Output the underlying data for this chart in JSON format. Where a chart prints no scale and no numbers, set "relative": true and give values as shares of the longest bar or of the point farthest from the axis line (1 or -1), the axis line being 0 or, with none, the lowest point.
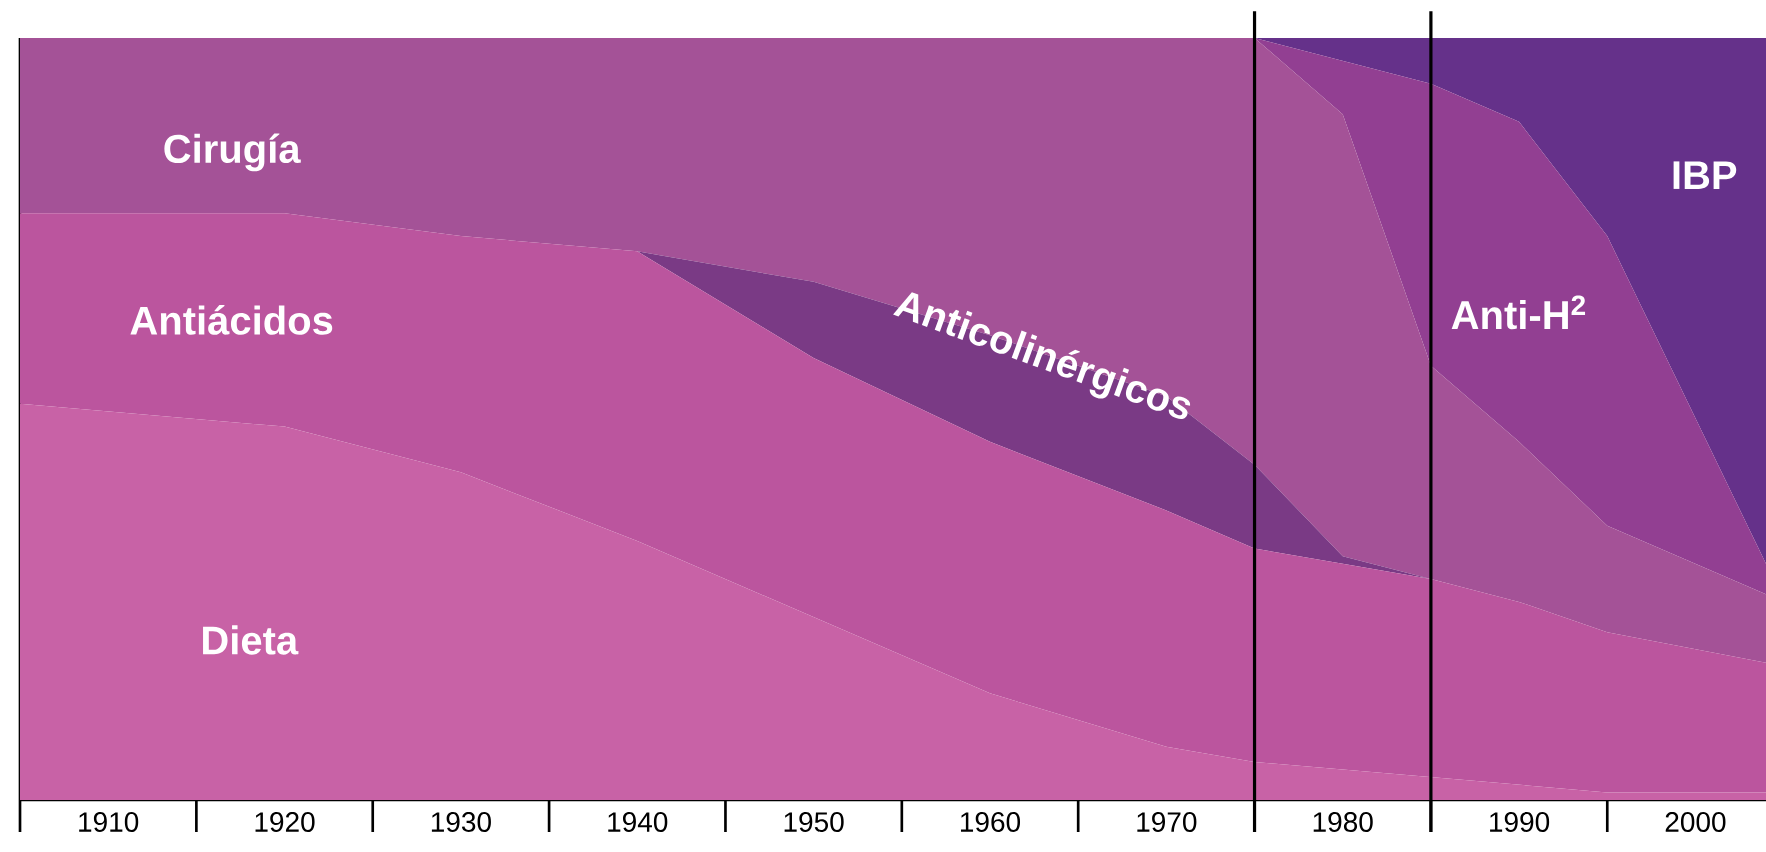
{
  "chart_data": {
    "type": "area",
    "stacked": true,
    "relative": true,
    "x": [
      1905,
      1920,
      1930,
      1940,
      1950,
      1960,
      1970,
      1975,
      1980,
      1985,
      1990,
      1995,
      2004
    ],
    "xlim": [
      1905,
      2004
    ],
    "xticks": [
      1910,
      1920,
      1930,
      1940,
      1950,
      1960,
      1970,
      1980,
      1990,
      2000
    ],
    "series": [
      {
        "name": "Dieta",
        "color": "#c862a6",
        "values": [
          0.52,
          0.49,
          0.43,
          0.34,
          0.24,
          0.14,
          0.07,
          0.05,
          0.04,
          0.03,
          0.02,
          0.01,
          0.01
        ]
      },
      {
        "name": "Antiácidos",
        "color": "#bb559e",
        "values": [
          0.25,
          0.28,
          0.31,
          0.38,
          0.34,
          0.33,
          0.31,
          0.28,
          0.27,
          0.26,
          0.24,
          0.21,
          0.17
        ]
      },
      {
        "name": "Anticolinérgicos",
        "color": "#7a3a85",
        "values": [
          0,
          0,
          0,
          0,
          0.1,
          0.14,
          0.15,
          0.11,
          0.01,
          0,
          0,
          0,
          0
        ]
      },
      {
        "name": "Cirugía",
        "color": "#a45297",
        "values": [
          0.23,
          0.23,
          0.26,
          0.28,
          0.32,
          0.39,
          0.47,
          0.56,
          0.58,
          0.28,
          0.21,
          0.14,
          0.09
        ]
      },
      {
        "name": "Anti-H$^{2}$",
        "color": "#923f92",
        "values": [
          0,
          0,
          0,
          0,
          0,
          0,
          0,
          0,
          0.07,
          0.37,
          0.42,
          0.38,
          0.04
        ]
      },
      {
        "name": "IBP",
        "color": "#65318a",
        "values": [
          0,
          0,
          0,
          0,
          0,
          0,
          0,
          0,
          0.03,
          0.06,
          0.11,
          0.26,
          0.69
        ]
      }
    ],
    "ref_lines": [
      {
        "axis": "x",
        "value": 1975,
        "color": "#000000"
      },
      {
        "axis": "x",
        "value": 1985,
        "color": "#000000"
      }
    ]
  }
}
